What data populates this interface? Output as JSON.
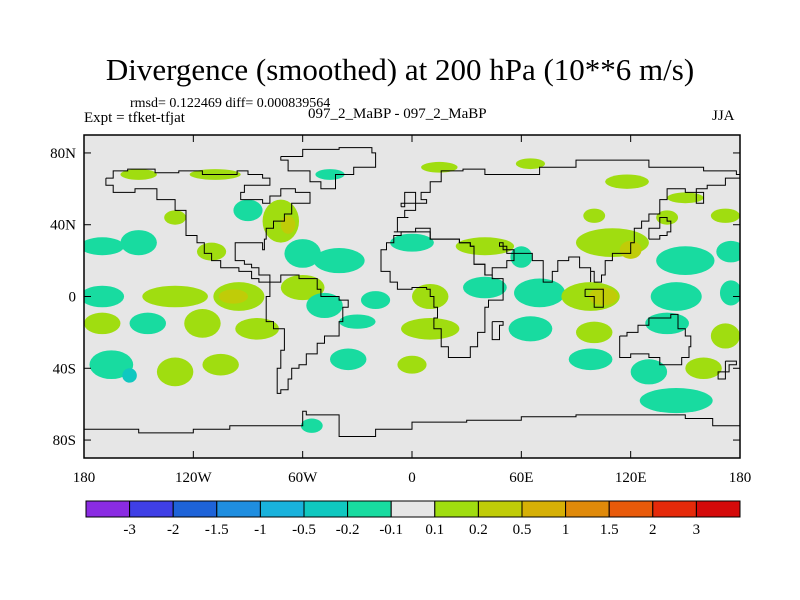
{
  "title": "Divergence (smoothed) at 200 hPa (10**6 m/s)",
  "stats_text": "rmsd= 0.122469 diff= 0.000839564",
  "experiment": "Expt = tfket-tfjat",
  "runs": "097_2_MaBP - 097_2_MaBP",
  "season": "JJA",
  "axes": {
    "lat_ticks": [
      {
        "value": 80,
        "label": "80N"
      },
      {
        "value": 40,
        "label": "40N"
      },
      {
        "value": 0,
        "label": "0"
      },
      {
        "value": -40,
        "label": "40S"
      },
      {
        "value": -80,
        "label": "80S"
      }
    ],
    "lon_ticks": [
      {
        "value": -180,
        "label": "180"
      },
      {
        "value": -120,
        "label": "120W"
      },
      {
        "value": -60,
        "label": "60W"
      },
      {
        "value": 0,
        "label": "0"
      },
      {
        "value": 60,
        "label": "60E"
      },
      {
        "value": 120,
        "label": "120E"
      },
      {
        "value": 180,
        "label": "180"
      }
    ],
    "lon_range": [
      -180,
      180
    ],
    "lat_range": [
      -90,
      90
    ]
  },
  "colorbar": {
    "boundaries": [
      "-3",
      "-2",
      "-1.5",
      "-1",
      "-0.5",
      "-0.2",
      "-0.1",
      "0.1",
      "0.2",
      "0.5",
      "1",
      "1.5",
      "2",
      "3"
    ],
    "colors": [
      "#8a2be2",
      "#3f3fe6",
      "#1e63d8",
      "#1f8ee0",
      "#19b2dc",
      "#10c8c0",
      "#18dba0",
      "#e6e6e6",
      "#a0dd10",
      "#c0cc08",
      "#d6b006",
      "#e08a0a",
      "#e85a0a",
      "#e52a0a",
      "#d40a0a"
    ]
  },
  "colors": {
    "background_field": "#e6e6e6",
    "coast": "#000000"
  },
  "field_blobs": [
    {
      "lon": -150,
      "lat": 68,
      "rx": 10,
      "ry": 3,
      "level": "pos1"
    },
    {
      "lon": -108,
      "lat": 68,
      "rx": 14,
      "ry": 3,
      "level": "pos1"
    },
    {
      "lon": -45,
      "lat": 68,
      "rx": 8,
      "ry": 3,
      "level": "neg1"
    },
    {
      "lon": 15,
      "lat": 72,
      "rx": 10,
      "ry": 3,
      "level": "pos1"
    },
    {
      "lon": 65,
      "lat": 74,
      "rx": 8,
      "ry": 3,
      "level": "pos1"
    },
    {
      "lon": 118,
      "lat": 64,
      "rx": 12,
      "ry": 4,
      "level": "pos1"
    },
    {
      "lon": 150,
      "lat": 55,
      "rx": 10,
      "ry": 3,
      "level": "pos1"
    },
    {
      "lon": -130,
      "lat": 44,
      "rx": 6,
      "ry": 4,
      "level": "pos1"
    },
    {
      "lon": -90,
      "lat": 48,
      "rx": 8,
      "ry": 6,
      "level": "neg1"
    },
    {
      "lon": -72,
      "lat": 42,
      "rx": 10,
      "ry": 12,
      "level": "pos1"
    },
    {
      "lon": -68,
      "lat": 40,
      "rx": 4,
      "ry": 5,
      "level": "pos2"
    },
    {
      "lon": 100,
      "lat": 45,
      "rx": 6,
      "ry": 4,
      "level": "pos1"
    },
    {
      "lon": 140,
      "lat": 44,
      "rx": 6,
      "ry": 4,
      "level": "pos1"
    },
    {
      "lon": 172,
      "lat": 45,
      "rx": 8,
      "ry": 4,
      "level": "pos1"
    },
    {
      "lon": -170,
      "lat": 28,
      "rx": 12,
      "ry": 5,
      "level": "neg1"
    },
    {
      "lon": -150,
      "lat": 30,
      "rx": 10,
      "ry": 7,
      "level": "neg1"
    },
    {
      "lon": -110,
      "lat": 25,
      "rx": 8,
      "ry": 5,
      "level": "pos1"
    },
    {
      "lon": -60,
      "lat": 24,
      "rx": 10,
      "ry": 8,
      "level": "neg1"
    },
    {
      "lon": -40,
      "lat": 20,
      "rx": 14,
      "ry": 7,
      "level": "neg1"
    },
    {
      "lon": 0,
      "lat": 30,
      "rx": 12,
      "ry": 5,
      "level": "neg1"
    },
    {
      "lon": 40,
      "lat": 28,
      "rx": 16,
      "ry": 5,
      "level": "pos1"
    },
    {
      "lon": 60,
      "lat": 22,
      "rx": 6,
      "ry": 6,
      "level": "neg1"
    },
    {
      "lon": 110,
      "lat": 30,
      "rx": 20,
      "ry": 8,
      "level": "pos1"
    },
    {
      "lon": 120,
      "lat": 26,
      "rx": 6,
      "ry": 5,
      "level": "pos2"
    },
    {
      "lon": 150,
      "lat": 20,
      "rx": 16,
      "ry": 8,
      "level": "neg1"
    },
    {
      "lon": 175,
      "lat": 25,
      "rx": 8,
      "ry": 6,
      "level": "neg1"
    },
    {
      "lon": -170,
      "lat": 0,
      "rx": 12,
      "ry": 6,
      "level": "neg1"
    },
    {
      "lon": -130,
      "lat": 0,
      "rx": 18,
      "ry": 6,
      "level": "pos1"
    },
    {
      "lon": -95,
      "lat": 0,
      "rx": 14,
      "ry": 8,
      "level": "pos1"
    },
    {
      "lon": -98,
      "lat": 0,
      "rx": 8,
      "ry": 4,
      "level": "pos2"
    },
    {
      "lon": -60,
      "lat": 5,
      "rx": 12,
      "ry": 7,
      "level": "pos1"
    },
    {
      "lon": -48,
      "lat": -5,
      "rx": 10,
      "ry": 7,
      "level": "neg1"
    },
    {
      "lon": -20,
      "lat": -2,
      "rx": 8,
      "ry": 5,
      "level": "neg1"
    },
    {
      "lon": 10,
      "lat": 0,
      "rx": 10,
      "ry": 7,
      "level": "pos1"
    },
    {
      "lon": 40,
      "lat": 5,
      "rx": 12,
      "ry": 6,
      "level": "neg1"
    },
    {
      "lon": 70,
      "lat": 2,
      "rx": 14,
      "ry": 8,
      "level": "neg1"
    },
    {
      "lon": 98,
      "lat": 0,
      "rx": 16,
      "ry": 8,
      "level": "pos1"
    },
    {
      "lon": 105,
      "lat": 0,
      "rx": 8,
      "ry": 5,
      "level": "pos2"
    },
    {
      "lon": 145,
      "lat": 0,
      "rx": 14,
      "ry": 8,
      "level": "neg1"
    },
    {
      "lon": 175,
      "lat": 2,
      "rx": 6,
      "ry": 7,
      "level": "neg1"
    },
    {
      "lon": -170,
      "lat": -15,
      "rx": 10,
      "ry": 6,
      "level": "pos1"
    },
    {
      "lon": -145,
      "lat": -15,
      "rx": 10,
      "ry": 6,
      "level": "neg1"
    },
    {
      "lon": -115,
      "lat": -15,
      "rx": 10,
      "ry": 8,
      "level": "pos1"
    },
    {
      "lon": -85,
      "lat": -18,
      "rx": 12,
      "ry": 6,
      "level": "pos1"
    },
    {
      "lon": -30,
      "lat": -14,
      "rx": 10,
      "ry": 4,
      "level": "neg1"
    },
    {
      "lon": 10,
      "lat": -18,
      "rx": 16,
      "ry": 6,
      "level": "pos1"
    },
    {
      "lon": 65,
      "lat": -18,
      "rx": 12,
      "ry": 7,
      "level": "neg1"
    },
    {
      "lon": 100,
      "lat": -20,
      "rx": 10,
      "ry": 6,
      "level": "pos1"
    },
    {
      "lon": 140,
      "lat": -15,
      "rx": 12,
      "ry": 6,
      "level": "neg1"
    },
    {
      "lon": 172,
      "lat": -22,
      "rx": 8,
      "ry": 7,
      "level": "pos1"
    },
    {
      "lon": -165,
      "lat": -38,
      "rx": 12,
      "ry": 8,
      "level": "neg1"
    },
    {
      "lon": -155,
      "lat": -44,
      "rx": 4,
      "ry": 4,
      "level": "neg2"
    },
    {
      "lon": -130,
      "lat": -42,
      "rx": 10,
      "ry": 8,
      "level": "pos1"
    },
    {
      "lon": -105,
      "lat": -38,
      "rx": 10,
      "ry": 6,
      "level": "pos1"
    },
    {
      "lon": -35,
      "lat": -35,
      "rx": 10,
      "ry": 6,
      "level": "neg1"
    },
    {
      "lon": 0,
      "lat": -38,
      "rx": 8,
      "ry": 5,
      "level": "pos1"
    },
    {
      "lon": 98,
      "lat": -35,
      "rx": 12,
      "ry": 6,
      "level": "neg1"
    },
    {
      "lon": 130,
      "lat": -42,
      "rx": 10,
      "ry": 7,
      "level": "neg1"
    },
    {
      "lon": 160,
      "lat": -40,
      "rx": 10,
      "ry": 6,
      "level": "pos1"
    },
    {
      "lon": 145,
      "lat": -58,
      "rx": 20,
      "ry": 7,
      "level": "neg1"
    },
    {
      "lon": -55,
      "lat": -72,
      "rx": 6,
      "ry": 4,
      "level": "neg1"
    }
  ],
  "coastlines": [
    [
      [
        -168,
        66
      ],
      [
        -164,
        70
      ],
      [
        -156,
        71
      ],
      [
        -141,
        69
      ],
      [
        -128,
        70
      ],
      [
        -115,
        68
      ],
      [
        -96,
        70
      ],
      [
        -90,
        68
      ],
      [
        -82,
        66
      ],
      [
        -78,
        62
      ],
      [
        -92,
        58
      ],
      [
        -94,
        54
      ],
      [
        -82,
        52
      ],
      [
        -78,
        56
      ],
      [
        -72,
        60
      ],
      [
        -64,
        58
      ],
      [
        -56,
        52
      ],
      [
        -66,
        46
      ],
      [
        -70,
        42
      ],
      [
        -76,
        38
      ],
      [
        -80,
        32
      ],
      [
        -81,
        26
      ],
      [
        -82,
        30
      ],
      [
        -90,
        30
      ],
      [
        -97,
        26
      ],
      [
        -97,
        20
      ],
      [
        -92,
        18
      ],
      [
        -88,
        16
      ],
      [
        -84,
        12
      ],
      [
        -78,
        8
      ],
      [
        -80,
        8
      ],
      [
        -84,
        10
      ],
      [
        -88,
        14
      ],
      [
        -95,
        16
      ],
      [
        -105,
        20
      ],
      [
        -110,
        24
      ],
      [
        -114,
        30
      ],
      [
        -118,
        34
      ],
      [
        -124,
        40
      ],
      [
        -124,
        48
      ],
      [
        -130,
        54
      ],
      [
        -140,
        60
      ],
      [
        -152,
        58
      ],
      [
        -160,
        58
      ],
      [
        -164,
        62
      ],
      [
        -168,
        66
      ]
    ],
    [
      [
        -78,
        8
      ],
      [
        -72,
        12
      ],
      [
        -62,
        10
      ],
      [
        -52,
        4
      ],
      [
        -50,
        0
      ],
      [
        -40,
        -2
      ],
      [
        -35,
        -6
      ],
      [
        -38,
        -14
      ],
      [
        -40,
        -22
      ],
      [
        -48,
        -26
      ],
      [
        -52,
        -32
      ],
      [
        -58,
        -38
      ],
      [
        -62,
        -40
      ],
      [
        -66,
        -46
      ],
      [
        -68,
        -52
      ],
      [
        -72,
        -54
      ],
      [
        -74,
        -48
      ],
      [
        -74,
        -40
      ],
      [
        -72,
        -30
      ],
      [
        -70,
        -18
      ],
      [
        -76,
        -14
      ],
      [
        -80,
        -6
      ],
      [
        -80,
        0
      ],
      [
        -78,
        8
      ]
    ],
    [
      [
        -72,
        78
      ],
      [
        -60,
        82
      ],
      [
        -40,
        83
      ],
      [
        -22,
        80
      ],
      [
        -20,
        72
      ],
      [
        -32,
        68
      ],
      [
        -42,
        60
      ],
      [
        -50,
        64
      ],
      [
        -56,
        70
      ],
      [
        -68,
        76
      ],
      [
        -72,
        78
      ]
    ],
    [
      [
        -10,
        36
      ],
      [
        -8,
        44
      ],
      [
        -2,
        44
      ],
      [
        -4,
        48
      ],
      [
        2,
        52
      ],
      [
        8,
        54
      ],
      [
        5,
        58
      ],
      [
        10,
        64
      ],
      [
        16,
        70
      ],
      [
        28,
        71
      ],
      [
        40,
        68
      ],
      [
        52,
        68
      ],
      [
        70,
        72
      ],
      [
        90,
        76
      ],
      [
        110,
        76
      ],
      [
        130,
        72
      ],
      [
        140,
        72
      ],
      [
        160,
        70
      ],
      [
        178,
        68
      ],
      [
        180,
        66
      ],
      [
        172,
        62
      ],
      [
        162,
        60
      ],
      [
        156,
        52
      ],
      [
        160,
        58
      ],
      [
        150,
        60
      ],
      [
        140,
        54
      ],
      [
        136,
        46
      ],
      [
        130,
        42
      ],
      [
        126,
        38
      ],
      [
        122,
        30
      ],
      [
        120,
        24
      ],
      [
        110,
        20
      ],
      [
        106,
        12
      ],
      [
        104,
        8
      ],
      [
        100,
        14
      ],
      [
        98,
        8
      ],
      [
        98,
        16
      ],
      [
        92,
        22
      ],
      [
        86,
        20
      ],
      [
        80,
        14
      ],
      [
        77,
        8
      ],
      [
        72,
        20
      ],
      [
        66,
        24
      ],
      [
        58,
        24
      ],
      [
        56,
        26
      ],
      [
        50,
        30
      ],
      [
        48,
        28
      ],
      [
        52,
        24
      ],
      [
        56,
        20
      ],
      [
        52,
        16
      ],
      [
        44,
        12
      ],
      [
        40,
        18
      ],
      [
        34,
        28
      ],
      [
        32,
        30
      ],
      [
        26,
        32
      ],
      [
        20,
        32
      ],
      [
        10,
        36
      ],
      [
        10,
        38
      ],
      [
        2,
        36
      ],
      [
        -4,
        36
      ],
      [
        -10,
        36
      ]
    ],
    [
      [
        -17,
        21
      ],
      [
        -17,
        14
      ],
      [
        -12,
        8
      ],
      [
        -8,
        4
      ],
      [
        0,
        5
      ],
      [
        8,
        4
      ],
      [
        10,
        0
      ],
      [
        12,
        -6
      ],
      [
        14,
        -12
      ],
      [
        12,
        -18
      ],
      [
        16,
        -28
      ],
      [
        20,
        -34
      ],
      [
        26,
        -34
      ],
      [
        32,
        -28
      ],
      [
        36,
        -20
      ],
      [
        40,
        -14
      ],
      [
        40,
        -6
      ],
      [
        42,
        -2
      ],
      [
        50,
        10
      ],
      [
        44,
        12
      ],
      [
        40,
        18
      ],
      [
        34,
        28
      ],
      [
        32,
        30
      ],
      [
        26,
        32
      ],
      [
        20,
        32
      ],
      [
        10,
        36
      ],
      [
        2,
        36
      ],
      [
        -6,
        34
      ],
      [
        -10,
        30
      ],
      [
        -14,
        26
      ],
      [
        -17,
        21
      ]
    ],
    [
      [
        114,
        -22
      ],
      [
        118,
        -20
      ],
      [
        124,
        -16
      ],
      [
        130,
        -12
      ],
      [
        136,
        -12
      ],
      [
        142,
        -10
      ],
      [
        146,
        -18
      ],
      [
        150,
        -22
      ],
      [
        153,
        -28
      ],
      [
        152,
        -34
      ],
      [
        148,
        -38
      ],
      [
        140,
        -38
      ],
      [
        136,
        -34
      ],
      [
        130,
        -32
      ],
      [
        120,
        -34
      ],
      [
        115,
        -34
      ],
      [
        114,
        -26
      ],
      [
        114,
        -22
      ]
    ],
    [
      [
        -180,
        -74
      ],
      [
        -150,
        -76
      ],
      [
        -120,
        -74
      ],
      [
        -100,
        -72
      ],
      [
        -70,
        -72
      ],
      [
        -60,
        -64
      ],
      [
        -58,
        -66
      ],
      [
        -40,
        -78
      ],
      [
        -20,
        -74
      ],
      [
        0,
        -70
      ],
      [
        30,
        -69
      ],
      [
        60,
        -67
      ],
      [
        90,
        -66
      ],
      [
        120,
        -66
      ],
      [
        150,
        -68
      ],
      [
        165,
        -72
      ],
      [
        180,
        -74
      ]
    ],
    [
      [
        -6,
        50
      ],
      [
        -4,
        58
      ],
      [
        0,
        58
      ],
      [
        2,
        52
      ],
      [
        -6,
        50
      ]
    ],
    [
      [
        130,
        32
      ],
      [
        136,
        34
      ],
      [
        140,
        36
      ],
      [
        142,
        42
      ],
      [
        140,
        44
      ],
      [
        136,
        38
      ],
      [
        130,
        32
      ]
    ],
    [
      [
        44,
        -14
      ],
      [
        50,
        -16
      ],
      [
        48,
        -24
      ],
      [
        44,
        -24
      ],
      [
        44,
        -14
      ]
    ],
    [
      [
        95,
        4
      ],
      [
        105,
        -6
      ],
      [
        100,
        0
      ],
      [
        95,
        4
      ]
    ],
    [
      [
        172,
        -36
      ],
      [
        178,
        -38
      ],
      [
        174,
        -42
      ],
      [
        168,
        -46
      ],
      [
        172,
        -36
      ]
    ]
  ]
}
